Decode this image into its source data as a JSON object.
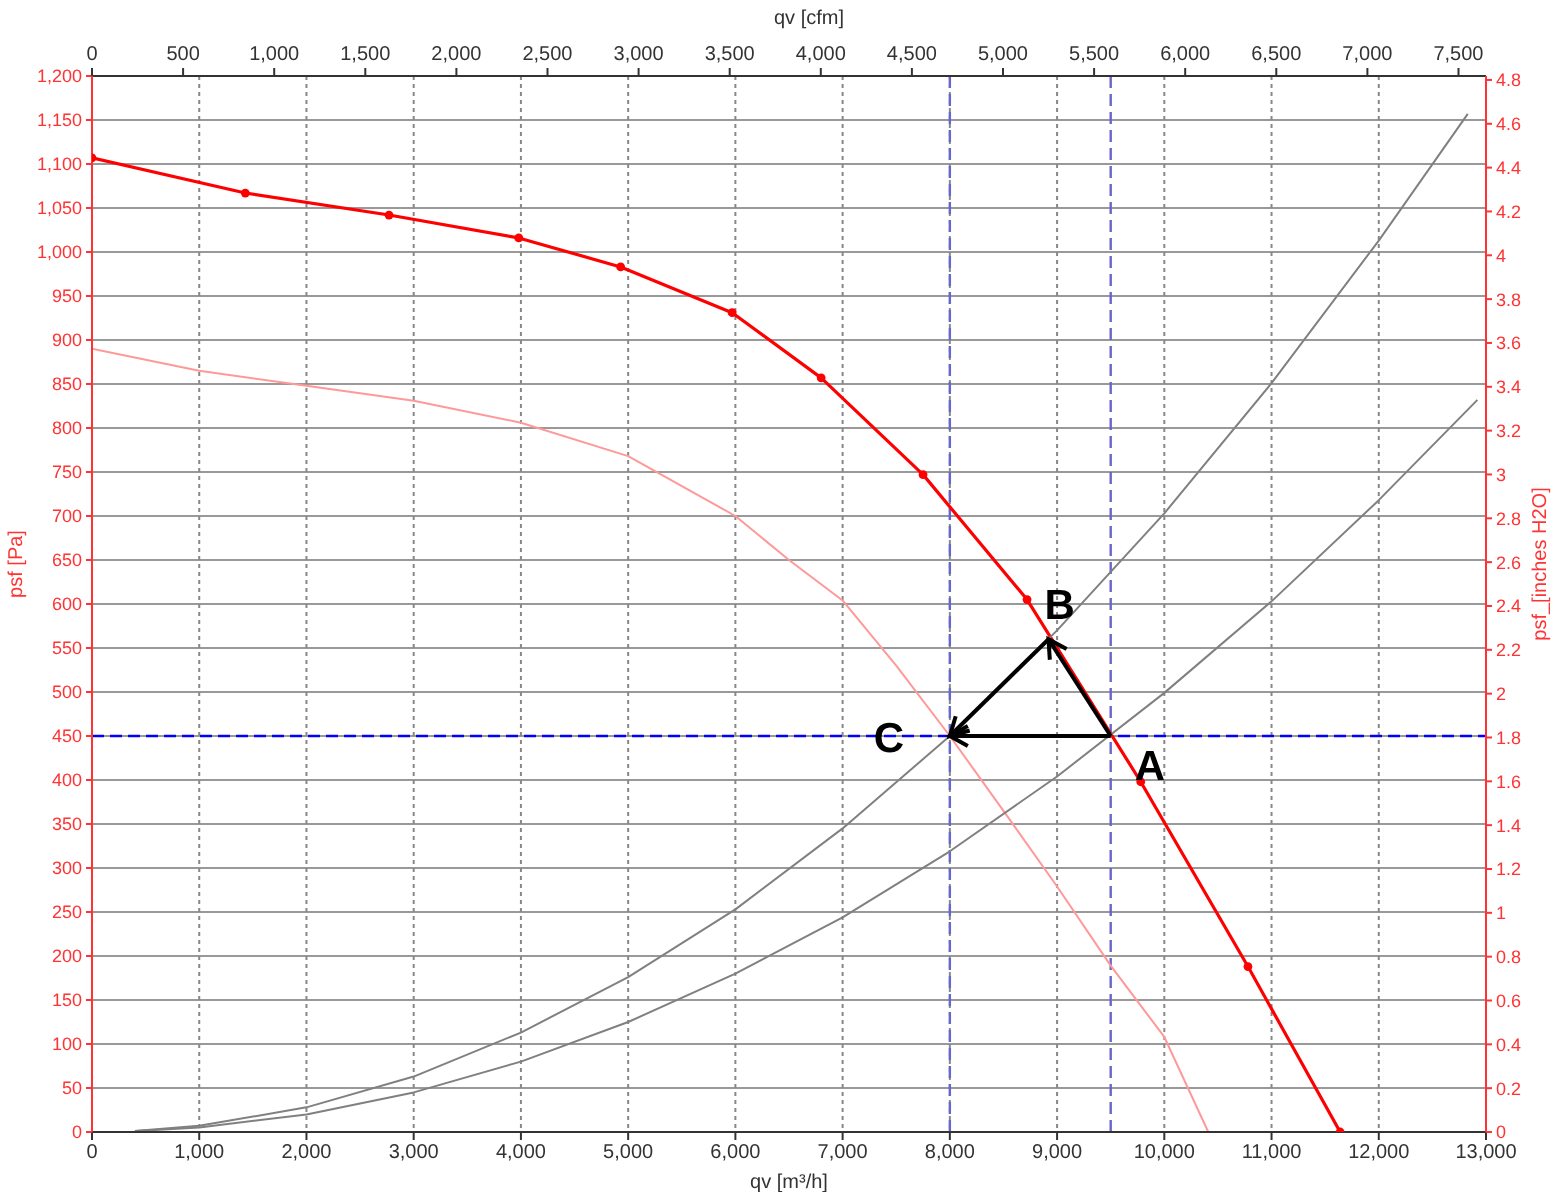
{
  "chart_data": {
    "type": "line",
    "xlabel": "qv [m³/h]",
    "x2label": "qv [cfm]",
    "ylabel": "psf [Pa]",
    "y2label": "psf_[inches H2O]",
    "xlim": [
      0,
      13000
    ],
    "xticks": [
      0,
      {
        "value": 1000,
        "label": "1,000"
      },
      {
        "value": 2000,
        "label": "2,000"
      },
      {
        "value": 3000,
        "label": "3,000"
      },
      {
        "value": 4000,
        "label": "4,000"
      },
      {
        "value": 5000,
        "label": "5,000"
      },
      {
        "value": 6000,
        "label": "6,000"
      },
      {
        "value": 7000,
        "label": "7,000"
      },
      {
        "value": 8000,
        "label": "8,000"
      },
      {
        "value": 9000,
        "label": "9,000"
      },
      {
        "value": 10000,
        "label": "10,000"
      },
      {
        "value": 11000,
        "label": "11,000"
      },
      {
        "value": 12000,
        "label": "12,000"
      },
      {
        "value": 13000,
        "label": "13,000"
      }
    ],
    "x2lim": [
      0,
      7651
    ],
    "x2ticks": [
      0,
      500,
      {
        "value": 1000,
        "label": "1,000"
      },
      {
        "value": 1500,
        "label": "1,500"
      },
      {
        "value": 2000,
        "label": "2,000"
      },
      {
        "value": 2500,
        "label": "2,500"
      },
      {
        "value": 3000,
        "label": "3,000"
      },
      {
        "value": 3500,
        "label": "3,500"
      },
      {
        "value": 4000,
        "label": "4,000"
      },
      {
        "value": 4500,
        "label": "4,500"
      },
      {
        "value": 5000,
        "label": "5,000"
      },
      {
        "value": 5500,
        "label": "5,500"
      },
      {
        "value": 6000,
        "label": "6,000"
      },
      {
        "value": 6500,
        "label": "6,500"
      },
      {
        "value": 7000,
        "label": "7,000"
      },
      {
        "value": 7500,
        "label": "7,500"
      }
    ],
    "ylim": [
      0,
      1200
    ],
    "yticks": [
      0,
      50,
      100,
      150,
      200,
      250,
      300,
      350,
      400,
      450,
      500,
      550,
      600,
      650,
      700,
      750,
      800,
      850,
      900,
      950,
      {
        "value": 1000,
        "label": "1,000"
      },
      {
        "value": 1050,
        "label": "1,050"
      },
      {
        "value": 1100,
        "label": "1,100"
      },
      {
        "value": 1150,
        "label": "1,150"
      },
      {
        "value": 1200,
        "label": "1,200"
      }
    ],
    "y2lim": [
      0,
      4.818
    ],
    "y2ticks": [
      0,
      0.2,
      0.4,
      0.6,
      0.8,
      1,
      1.2,
      1.4,
      1.6,
      1.8,
      2,
      2.2,
      2.4,
      2.6,
      2.8,
      3,
      3.2,
      3.4,
      3.6,
      3.8,
      4,
      4.2,
      4.4,
      4.6,
      4.8
    ],
    "grid": true,
    "series": [
      {
        "color": "#ff0000",
        "marker": "circle",
        "x": [
          0,
          1430,
          2770,
          3980,
          4930,
          5970,
          6800,
          7750,
          8720,
          9780,
          10780,
          11640
        ],
        "values": [
          1107,
          1067,
          1042,
          1016,
          983,
          931,
          857,
          747,
          605,
          398,
          188,
          0
        ]
      },
      {
        "color": "#ff9999",
        "marker": "none",
        "x": [
          0,
          1000,
          2000,
          3000,
          4000,
          5000,
          6000,
          6500,
          7000,
          7500,
          8000,
          8500,
          9000,
          9500,
          10000,
          10410
        ],
        "values": [
          890,
          865,
          848,
          831,
          806,
          768,
          700,
          650,
          604,
          530,
          450,
          365,
          279,
          189,
          108,
          0
        ]
      },
      {
        "color": "#808080",
        "marker": "none",
        "x": [
          400,
          1000,
          2000,
          3000,
          4000,
          5000,
          6000,
          7000,
          8000,
          9000,
          10000,
          11000,
          12000,
          12830
        ],
        "values": [
          1,
          7,
          28,
          63,
          113,
          176,
          253,
          345,
          450,
          570,
          703,
          851,
          1013,
          1157
        ]
      },
      {
        "color": "#808080",
        "marker": "none",
        "x": [
          400,
          1000,
          2000,
          3000,
          4000,
          5000,
          6000,
          7000,
          8000,
          9000,
          10000,
          11000,
          12000,
          12920
        ],
        "values": [
          1,
          5,
          20,
          45,
          80,
          125,
          180,
          244,
          319,
          404,
          499,
          603,
          718,
          832
        ]
      }
    ],
    "ref_lines": [
      {
        "axis": "y",
        "value": 450,
        "color": "#0000ff",
        "line_style": "dashed"
      },
      {
        "axis": "x",
        "value": 8000,
        "color": "#6666cc",
        "line_style": "dashed"
      },
      {
        "axis": "x",
        "value": 9500,
        "color": "#6666cc",
        "line_style": "dashed"
      }
    ],
    "annotations": [
      {
        "text": "A",
        "x": 9500,
        "y": 450
      },
      {
        "text": "B",
        "x": 8920,
        "y": 560
      },
      {
        "text": "C",
        "x": 8000,
        "y": 450
      }
    ]
  }
}
